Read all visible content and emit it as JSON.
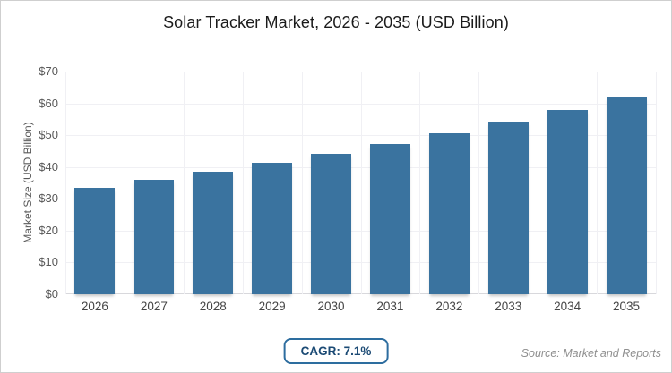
{
  "page": {
    "title": "Solar Tracker Market, 2026 - 2035 (USD Billion)",
    "cagr_label": "CAGR: 7.1%",
    "source": "Source: Market and Reports"
  },
  "colors": {
    "bar": "#3A739F",
    "grid": "#F0F0F4",
    "axis_line": "#D8D8DC",
    "badge_border": "#2D6D9F",
    "badge_text": "#1B4A74",
    "ytick_text": "#595959",
    "xtick_text": "#454545",
    "title_text": "#1B1B1B",
    "source_text": "#8F8F8F"
  },
  "chart_data": {
    "type": "bar",
    "title": "Solar Tracker Market, 2026 - 2035 (USD Billion)",
    "categories": [
      "2026",
      "2027",
      "2028",
      "2029",
      "2030",
      "2031",
      "2032",
      "2033",
      "2034",
      "2035"
    ],
    "values": [
      33.5,
      35.9,
      38.4,
      41.2,
      44.1,
      47.2,
      50.6,
      54.2,
      58.0,
      62.1
    ],
    "xlabel": "",
    "ylabel": "Market Size (USD Billion)",
    "ylim": [
      0,
      70
    ],
    "ytick_step": 10,
    "ytick_labels": [
      "$0",
      "$10",
      "$20",
      "$30",
      "$40",
      "$50",
      "$60",
      "$70"
    ],
    "grid": true,
    "legend": "none",
    "annotation_cagr": "7.1%"
  }
}
